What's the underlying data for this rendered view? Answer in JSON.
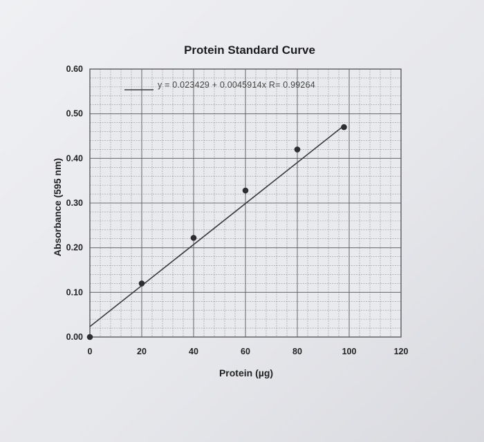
{
  "chart_data": {
    "type": "scatter",
    "title": "Protein Standard Curve",
    "xlabel": "Protein (µg)",
    "ylabel": "Absorbance (595 nm)",
    "xlim": [
      0,
      120
    ],
    "ylim": [
      0.0,
      0.6
    ],
    "x_ticks": [
      "0",
      "20",
      "40",
      "60",
      "80",
      "100",
      "120"
    ],
    "y_ticks": [
      "0.00",
      "0.10",
      "0.20",
      "0.30",
      "0.40",
      "0.50",
      "0.60"
    ],
    "grid": true,
    "series": [
      {
        "points": [
          {
            "x": 0,
            "y": 0.0
          },
          {
            "x": 20,
            "y": 0.12
          },
          {
            "x": 40,
            "y": 0.222
          },
          {
            "x": 60,
            "y": 0.328
          },
          {
            "x": 80,
            "y": 0.42
          },
          {
            "x": 98,
            "y": 0.47
          }
        ]
      }
    ],
    "fit": {
      "intercept": 0.023429,
      "slope": 0.0045914,
      "x_range": [
        0,
        98
      ],
      "equation_text": "y = 0.023429 + 0.0045914x   R= 0.99264"
    }
  },
  "colors": {
    "paper": "#e9eaee",
    "grid": "#5a5a5e",
    "line": "#3a3a3e",
    "marker": "#2e2e32",
    "text": "#222222"
  }
}
